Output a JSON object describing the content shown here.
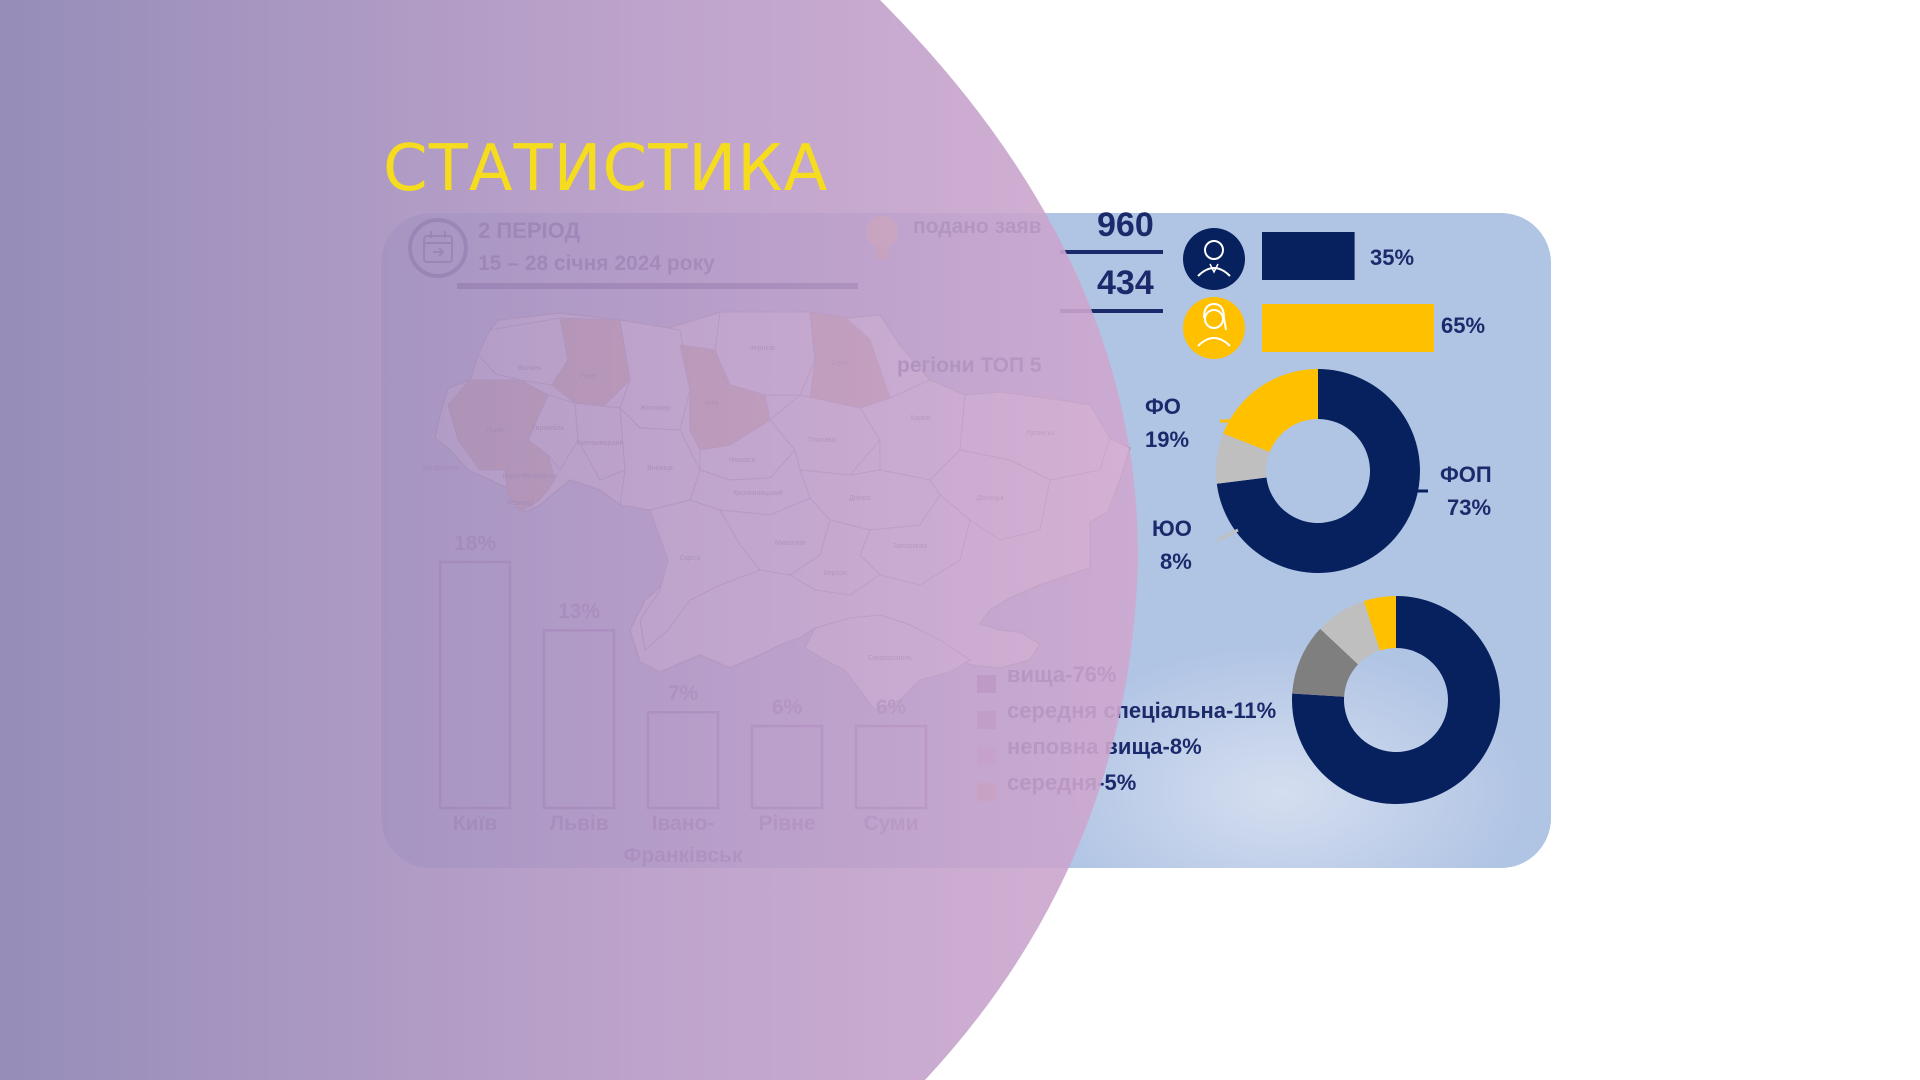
{
  "slide": {
    "title": "СТАТИСТИКА"
  },
  "period": {
    "label": "2 ПЕРІОД",
    "dates": "15 – 28 січня 2024 року",
    "icon": "calendar-icon"
  },
  "applications": {
    "label": "подано заяв",
    "icon": "lightbulb-icon",
    "count_submitted": "960",
    "count_second": "434"
  },
  "gender": {
    "male_icon": "man-icon",
    "female_icon": "woman-icon",
    "male_pct": "35%",
    "female_pct": "65%",
    "male_value": 35,
    "female_value": 65,
    "male_color": "#06215e",
    "female_color": "#ffc000"
  },
  "map": {
    "label": "регіони ТОП 5",
    "highlight_color": "#d7a26c",
    "base_color": "#ffffff",
    "region_names": [
      "Волинь",
      "Рівне",
      "Житомир",
      "Чернігів",
      "Суми",
      "Львів",
      "Тернопіль",
      "Хмельницький",
      "Київ",
      "Полтава",
      "Харків",
      "Луганськ",
      "Закарпаття",
      "Івано-Франківськ",
      "Чернівці",
      "Вінниця",
      "Черкаси",
      "Кропивницький",
      "Дніпро",
      "Донецьк",
      "Одеса",
      "Миколаїв",
      "Херсон",
      "Запоріжжя",
      "Сімферополь"
    ]
  },
  "chart_data": [
    {
      "type": "bar",
      "categories": [
        "Київ",
        "Львів",
        "Івано-Франківськ",
        "Рівне",
        "Суми"
      ],
      "category_lines": [
        [
          "Київ"
        ],
        [
          "Львів"
        ],
        [
          "Івано-",
          "Франківськ"
        ],
        [
          "Рівне"
        ],
        [
          "Суми"
        ]
      ],
      "values": [
        18,
        13,
        7,
        6,
        6
      ],
      "value_labels": [
        "18%",
        "13%",
        "7%",
        "6%",
        "6%"
      ]
    },
    {
      "type": "pie",
      "labels": [
        "ФОП",
        "ЮО",
        "ФО"
      ],
      "values": [
        73,
        8,
        19
      ],
      "value_labels": [
        "73%",
        "8%",
        "19%"
      ],
      "colors": [
        "#06215e",
        "#bfbfbf",
        "#ffc000"
      ]
    },
    {
      "type": "pie",
      "labels": [
        "вища-76%",
        "середня спеціальна-11%",
        "неповна вища-8%",
        "середня-5%"
      ],
      "values": [
        76,
        11,
        8,
        5
      ],
      "colors": [
        "#06215e",
        "#7f7f7f",
        "#bfbfbf",
        "#ffc000"
      ],
      "legend_colors": [
        "#6e5a9e",
        "#8f7a9e",
        "#b8a0c8",
        "#d49a80"
      ]
    }
  ]
}
